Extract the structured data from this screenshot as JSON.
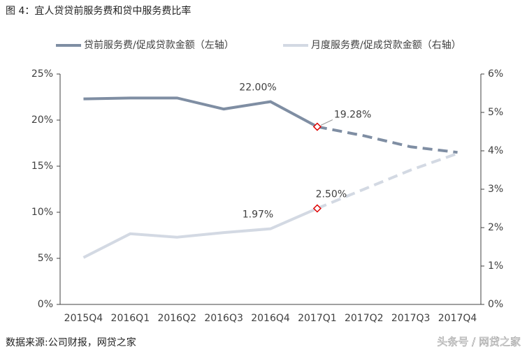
{
  "chart_data": {
    "type": "line",
    "title": "图 4：宜人贷贷前服务费和贷中服务费比率",
    "categories": [
      "2015Q4",
      "2016Q1",
      "2016Q2",
      "2016Q3",
      "2016Q4",
      "2017Q1",
      "2017Q2",
      "2017Q3",
      "2017Q4"
    ],
    "series": [
      {
        "name": "贷前服务费/促成贷款金额（左轴）",
        "color": "#7f8ea3",
        "axis": "y",
        "values": [
          22.3,
          22.4,
          22.4,
          21.2,
          22.0,
          19.28,
          18.3,
          17.1,
          16.5
        ],
        "value_labels": [
          null,
          null,
          null,
          null,
          "22.00%",
          "19.28%",
          null,
          null,
          null
        ]
      },
      {
        "name": "月度服务费/促成贷款金额（右轴）",
        "color": "#d3d9e3",
        "axis": "y2",
        "values": [
          1.22,
          1.84,
          1.75,
          1.87,
          1.97,
          2.5,
          3.0,
          3.5,
          3.93
        ],
        "value_labels": [
          null,
          null,
          null,
          null,
          "1.97%",
          "2.50%",
          null,
          null,
          null
        ]
      }
    ],
    "dashed_from": "2017Q1",
    "marker_at": "2017Q1",
    "marker_color": "#e00000",
    "ylim": [
      0,
      25
    ],
    "yticks": [
      {
        "value": 0,
        "label": "0%"
      },
      {
        "value": 5,
        "label": "5%"
      },
      {
        "value": 10,
        "label": "10%"
      },
      {
        "value": 15,
        "label": "15%"
      },
      {
        "value": 20,
        "label": "20%"
      },
      {
        "value": 25,
        "label": "25%"
      }
    ],
    "y2lim": [
      0,
      6
    ],
    "y2ticks": [
      {
        "value": 0,
        "label": "0%"
      },
      {
        "value": 1,
        "label": "1%"
      },
      {
        "value": 2,
        "label": "2%"
      },
      {
        "value": 3,
        "label": "3%"
      },
      {
        "value": 4,
        "label": "4%"
      },
      {
        "value": 5,
        "label": "5%"
      },
      {
        "value": 6,
        "label": "6%"
      }
    ],
    "grid": false,
    "source": "数据来源:公司财报，网贷之家",
    "watermark": "头条号 / 网贷之家"
  }
}
